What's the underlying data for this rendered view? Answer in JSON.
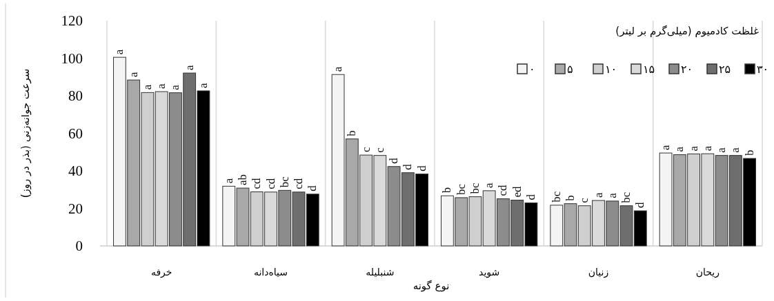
{
  "chart_data": {
    "type": "bar",
    "xlabel": "نوع گونه",
    "ylabel": "سرعت جوانه‌زنی (بذر در روز)",
    "legend_title": "غلظت کادمیوم (میلی‌گرم بر لیتر)",
    "categories": [
      "خرفه",
      "سیاه‌دانه",
      "شنبلیله",
      "شوید",
      "زنیان",
      "ریحان"
    ],
    "series": [
      {
        "name": "۰",
        "color": "#f4f4f4",
        "values": [
          100.5,
          31.8,
          91.3,
          26.7,
          21.7,
          49.5
        ],
        "value_labels": [
          "a",
          "a",
          "a",
          "b",
          "bc",
          "a"
        ]
      },
      {
        "name": "۵",
        "color": "#a8a8a8",
        "values": [
          88.4,
          30.8,
          57.0,
          25.7,
          22.5,
          48.6
        ],
        "value_labels": [
          "a",
          "ab",
          "b",
          "bc",
          "b",
          "a"
        ]
      },
      {
        "name": "۱۰",
        "color": "#cfcfcf",
        "values": [
          81.7,
          28.8,
          48.4,
          26.2,
          21.4,
          49.0
        ],
        "value_labels": [
          "a",
          "cd",
          "c",
          "bc",
          "c",
          "a"
        ]
      },
      {
        "name": "۱۵",
        "color": "#dadada",
        "values": [
          82.2,
          28.7,
          48.2,
          29.4,
          24.2,
          49.1
        ],
        "value_labels": [
          "a",
          "cd",
          "c",
          "a",
          "a",
          "a"
        ]
      },
      {
        "name": "۲۰",
        "color": "#8c8c8c",
        "values": [
          81.6,
          29.6,
          42.3,
          25.1,
          23.9,
          48.2
        ],
        "value_labels": [
          "a",
          "bc",
          "d",
          "cd",
          "a",
          "a"
        ]
      },
      {
        "name": "۲۵",
        "color": "#6e6e6e",
        "values": [
          92.1,
          28.7,
          39.0,
          24.4,
          21.4,
          48.2
        ],
        "value_labels": [
          "a",
          "cd",
          "d",
          "ed",
          "bc",
          "a"
        ]
      },
      {
        "name": "۳۰",
        "color": "#000000",
        "values": [
          82.6,
          27.6,
          38.3,
          22.9,
          18.7,
          46.6
        ],
        "value_labels": [
          "a",
          "d",
          "d",
          "d",
          "d",
          "b"
        ]
      }
    ],
    "ylim": [
      0,
      120
    ],
    "yticks": [
      0,
      20,
      40,
      60,
      80,
      100,
      120
    ],
    "grid": "x",
    "legend": "top right"
  }
}
